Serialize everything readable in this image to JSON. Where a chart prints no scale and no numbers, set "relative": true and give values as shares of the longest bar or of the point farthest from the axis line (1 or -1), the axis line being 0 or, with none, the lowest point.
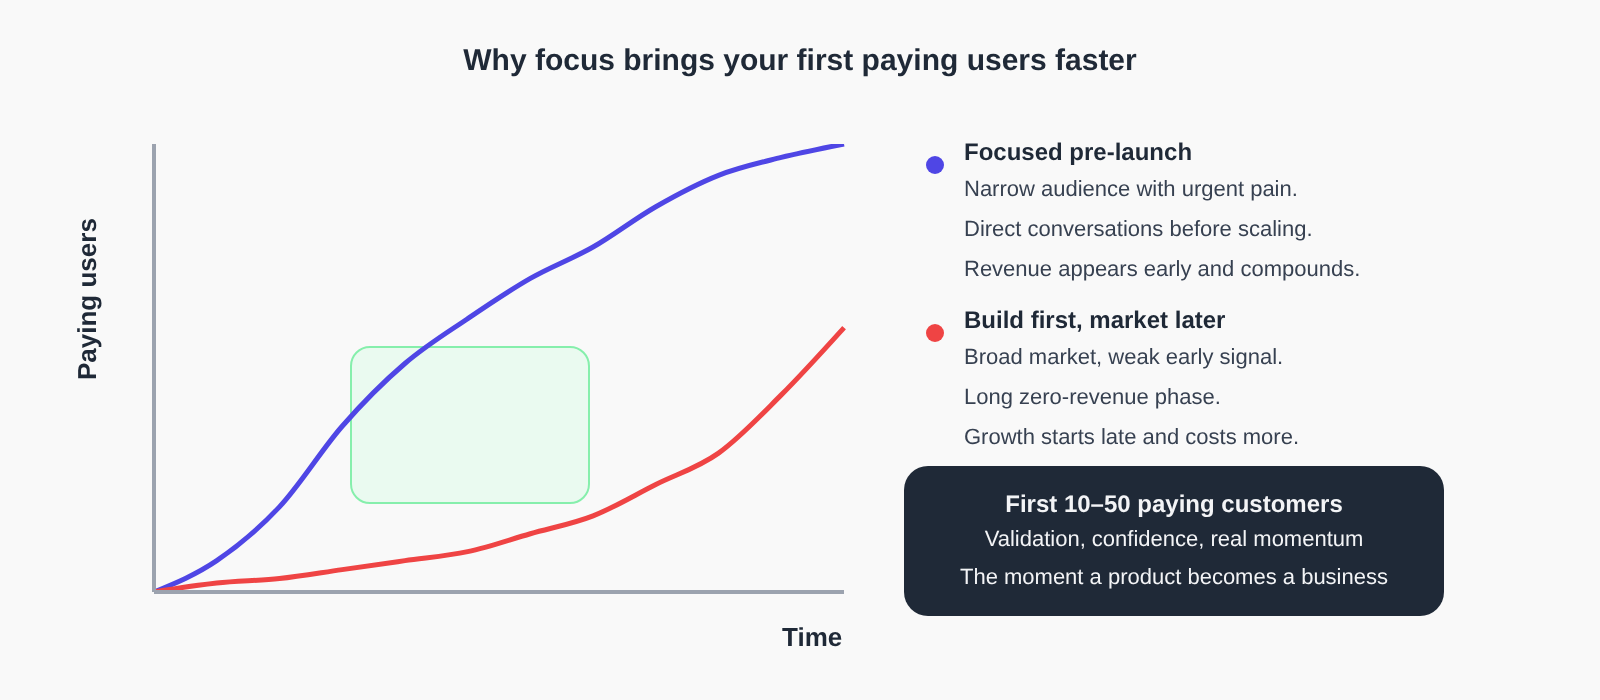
{
  "chart_data": {
    "type": "line",
    "title": "Why focus brings your first paying users faster",
    "xlabel": "Time",
    "ylabel": "Paying users",
    "relative": true,
    "legend": "right",
    "marker": "none",
    "line_style": "solid",
    "categories": [
      null,
      null,
      null,
      null,
      null,
      null,
      null,
      null,
      null,
      null,
      null,
      null
    ],
    "series": [
      {
        "name": "Focused pre-launch",
        "color": "#4f46e5",
        "values": [
          0,
          0.07,
          0.19,
          0.37,
          0.51,
          0.61,
          0.7,
          0.77,
          0.86,
          0.93,
          0.97,
          1
        ]
      },
      {
        "name": "Build first, market later",
        "color": "#ef4444",
        "values": [
          0,
          0.02,
          0.03,
          0.05,
          0.07,
          0.09,
          0.13,
          0.17,
          0.24,
          0.31,
          0.44,
          0.59
        ]
      }
    ],
    "annotations": [
      "Narrow audience with urgent pain.",
      "Direct conversations before scaling.",
      "Revenue appears early and compounds.",
      "Broad market, weak early signal.",
      "Long zero-revenue phase.",
      "Growth starts late and costs more.",
      "First 10–50 paying customers",
      "Validation, confidence, real momentum",
      "The moment a product becomes a business"
    ]
  }
}
